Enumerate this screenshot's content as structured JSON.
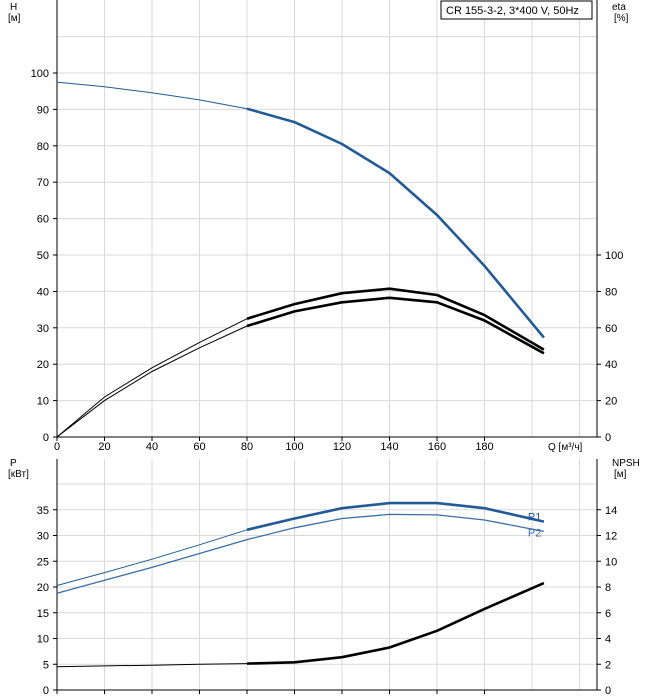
{
  "header": {
    "model_label": "CR 155-3-2, 3*400 V, 50Hz"
  },
  "colors": {
    "blue": "#235a96",
    "blue_thin": "#3b6ea8",
    "black": "#000000"
  },
  "chart_data": [
    {
      "type": "line",
      "name": "performance",
      "xlabel": "Q [м³/ч]",
      "x_ticks": [
        0,
        20,
        40,
        60,
        80,
        100,
        120,
        140,
        160,
        180
      ],
      "xlim": [
        0,
        230
      ],
      "left_axis": {
        "label_line1": "H",
        "label_line2": "[м]",
        "ticks": [
          0,
          10,
          20,
          30,
          40,
          50,
          60,
          70,
          80,
          90,
          100
        ],
        "ylim": [
          0,
          110
        ]
      },
      "right_axis": {
        "label_line1": "eta",
        "label_line2": "[%]",
        "ticks": [
          0,
          20,
          40,
          60,
          80,
          100
        ],
        "ylim": [
          0,
          220
        ]
      },
      "series": [
        {
          "key": "H",
          "axis": "left",
          "color": "#235a96",
          "thin_until": 80,
          "points": [
            [
              0,
              97.5
            ],
            [
              20,
              96.2
            ],
            [
              40,
              94.6
            ],
            [
              60,
              92.6
            ],
            [
              80,
              90.2
            ],
            [
              100,
              86.5
            ],
            [
              120,
              80.5
            ],
            [
              140,
              72.5
            ],
            [
              160,
              61
            ],
            [
              180,
              47
            ],
            [
              205,
              27.3
            ]
          ]
        },
        {
          "key": "eta1",
          "axis": "right",
          "color": "#000000",
          "thin_until": 80,
          "points": [
            [
              0,
              0
            ],
            [
              20,
              22
            ],
            [
              40,
              38
            ],
            [
              60,
              52
            ],
            [
              80,
              65
            ],
            [
              100,
              73
            ],
            [
              120,
              79
            ],
            [
              140,
              81.5
            ],
            [
              160,
              78
            ],
            [
              180,
              67
            ],
            [
              205,
              48
            ]
          ]
        },
        {
          "key": "eta2",
          "axis": "right",
          "color": "#000000",
          "thin_until": 80,
          "points": [
            [
              0,
              0
            ],
            [
              20,
              20
            ],
            [
              40,
              36
            ],
            [
              60,
              49
            ],
            [
              80,
              61
            ],
            [
              100,
              69
            ],
            [
              120,
              74
            ],
            [
              140,
              76.5
            ],
            [
              160,
              74
            ],
            [
              180,
              64
            ],
            [
              205,
              46
            ]
          ]
        }
      ]
    },
    {
      "type": "line",
      "name": "power-npsh",
      "x_ticks": [
        0,
        20,
        40,
        60,
        80,
        100,
        120,
        140,
        160,
        180
      ],
      "xlim": [
        0,
        230
      ],
      "left_axis": {
        "label_line1": "P",
        "label_line2": "[кВт]",
        "ticks": [
          0,
          5,
          10,
          15,
          20,
          25,
          30,
          35
        ],
        "ylim": [
          0,
          40
        ]
      },
      "right_axis": {
        "label_line1": "NPSH",
        "label_line2": "[м]",
        "ticks": [
          0,
          2,
          4,
          6,
          8,
          10,
          12,
          14
        ],
        "ylim": [
          0,
          16
        ]
      },
      "series": [
        {
          "key": "P1",
          "label": "P1",
          "axis": "left",
          "color": "#235a96",
          "thin_until": 80,
          "points": [
            [
              0,
              20.3
            ],
            [
              20,
              22.8
            ],
            [
              40,
              25.4
            ],
            [
              60,
              28.2
            ],
            [
              80,
              31.1
            ],
            [
              100,
              33.3
            ],
            [
              120,
              35.3
            ],
            [
              140,
              36.3
            ],
            [
              160,
              36.3
            ],
            [
              180,
              35.3
            ],
            [
              205,
              32.7
            ]
          ]
        },
        {
          "key": "P2",
          "label": "P2",
          "axis": "left",
          "color": "#3b6ea8",
          "thin_until": 0,
          "points": [
            [
              0,
              18.8
            ],
            [
              20,
              21.3
            ],
            [
              40,
              23.8
            ],
            [
              60,
              26.5
            ],
            [
              80,
              29.2
            ],
            [
              100,
              31.5
            ],
            [
              120,
              33.3
            ],
            [
              140,
              34.1
            ],
            [
              160,
              34.0
            ],
            [
              180,
              33.0
            ],
            [
              205,
              30.8
            ]
          ]
        },
        {
          "key": "NPSH",
          "axis": "right",
          "color": "#000000",
          "thin_until": 80,
          "points": [
            [
              0,
              1.8
            ],
            [
              20,
              1.87
            ],
            [
              40,
              1.93
            ],
            [
              60,
              2.0
            ],
            [
              80,
              2.05
            ],
            [
              100,
              2.15
            ],
            [
              120,
              2.55
            ],
            [
              140,
              3.3
            ],
            [
              160,
              4.6
            ],
            [
              180,
              6.3
            ],
            [
              205,
              8.3
            ]
          ]
        }
      ]
    }
  ]
}
